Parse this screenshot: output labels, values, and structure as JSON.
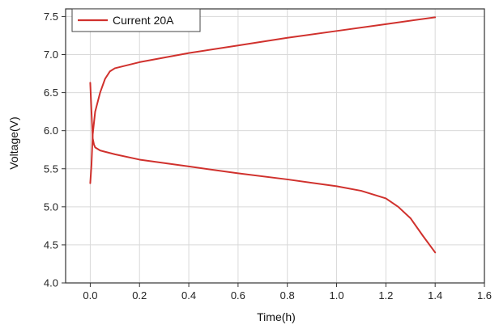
{
  "colors": {
    "series": "#d0312d",
    "grid": "#d9d9d9",
    "axis": "#333333",
    "background": "#ffffff"
  },
  "chart_data": {
    "type": "line",
    "title": "",
    "xlabel": "Time(h)",
    "ylabel": "Voltage(V)",
    "xlim": [
      -0.1,
      1.6
    ],
    "ylim": [
      4.0,
      7.6
    ],
    "xticks": [
      0.0,
      0.2,
      0.4,
      0.6,
      0.8,
      1.0,
      1.2,
      1.4,
      1.6
    ],
    "xtick_labels": [
      "0.0",
      "0.2",
      "0.4",
      "0.6",
      "0.8",
      "1.0",
      "1.2",
      "1.4",
      "1.6"
    ],
    "yticks": [
      4.0,
      4.5,
      5.0,
      5.5,
      6.0,
      6.5,
      7.0,
      7.5
    ],
    "ytick_labels": [
      "4.0",
      "4.5",
      "5.0",
      "5.5",
      "6.0",
      "6.5",
      "7.0",
      "7.5"
    ],
    "grid": true,
    "legend_position": "top-left",
    "series": [
      {
        "name": "Current 20A",
        "color": "#d0312d",
        "segments": [
          {
            "x": [
              0.0,
              0.005,
              0.01,
              0.02,
              0.04,
              0.06,
              0.08,
              0.1,
              0.15,
              0.2,
              0.4,
              0.6,
              0.8,
              1.0,
              1.2,
              1.4
            ],
            "y": [
              5.31,
              5.55,
              5.95,
              6.25,
              6.5,
              6.68,
              6.78,
              6.82,
              6.86,
              6.9,
              7.02,
              7.12,
              7.22,
              7.31,
              7.4,
              7.49
            ]
          },
          {
            "x": [
              0.0,
              0.005,
              0.01,
              0.015,
              0.02,
              0.04,
              0.1,
              0.2,
              0.4,
              0.6,
              0.8,
              1.0,
              1.1,
              1.2,
              1.25,
              1.3,
              1.35,
              1.4
            ],
            "y": [
              6.63,
              6.25,
              5.9,
              5.82,
              5.78,
              5.74,
              5.69,
              5.62,
              5.53,
              5.44,
              5.36,
              5.27,
              5.21,
              5.11,
              5.0,
              4.85,
              4.62,
              4.4
            ]
          }
        ]
      }
    ]
  }
}
